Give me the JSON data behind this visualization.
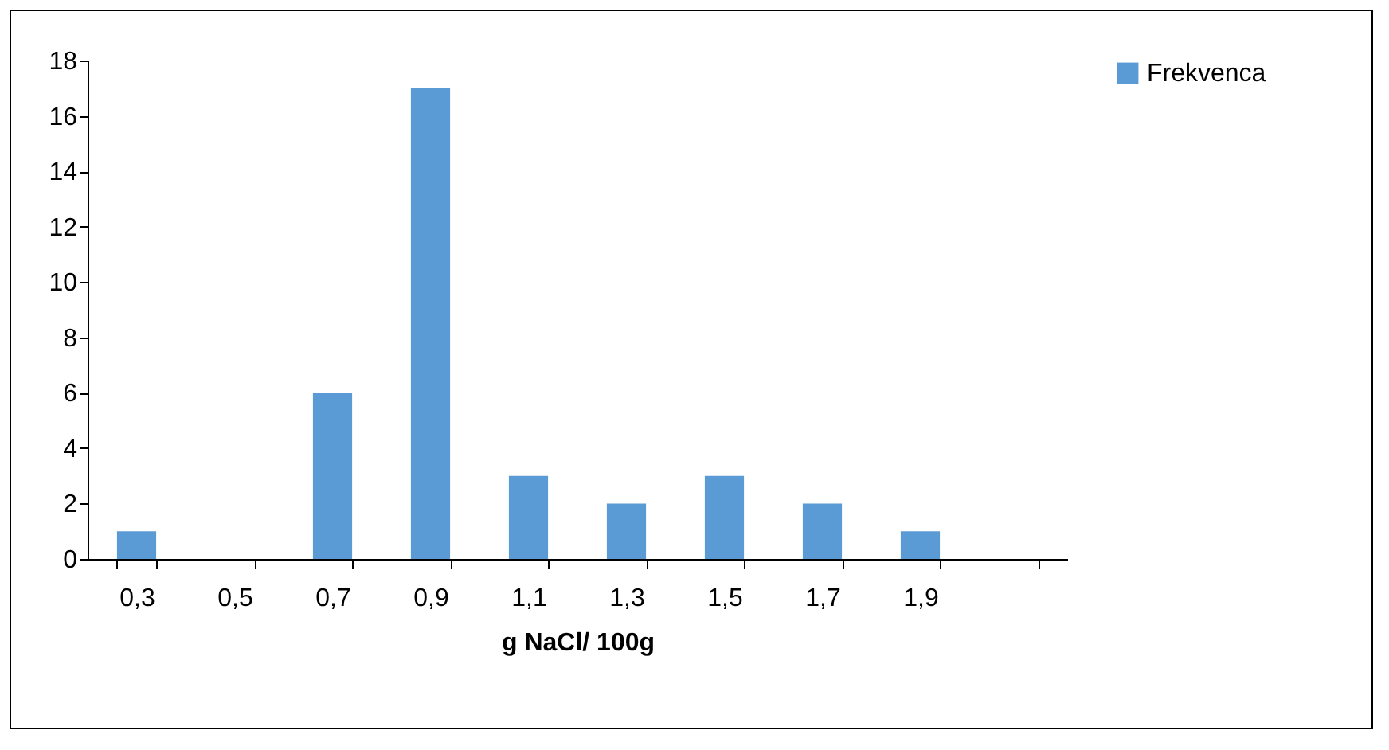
{
  "chart_data": {
    "type": "bar",
    "xlabel": "g NaCl/ 100g",
    "categories": [
      "0,3",
      "0,5",
      "0,7",
      "0,9",
      "1,1",
      "1,3",
      "1,5",
      "1,7",
      "1,9",
      null
    ],
    "series": [
      {
        "name": "Frekvenca",
        "color": "#5b9bd5",
        "values": [
          1,
          0,
          6,
          17,
          3,
          2,
          3,
          2,
          1,
          0
        ]
      }
    ],
    "ylim": [
      0,
      18
    ],
    "yticks": [
      0,
      2,
      4,
      6,
      8,
      10,
      12,
      14,
      16,
      18
    ],
    "grid": false,
    "legend": "right"
  }
}
